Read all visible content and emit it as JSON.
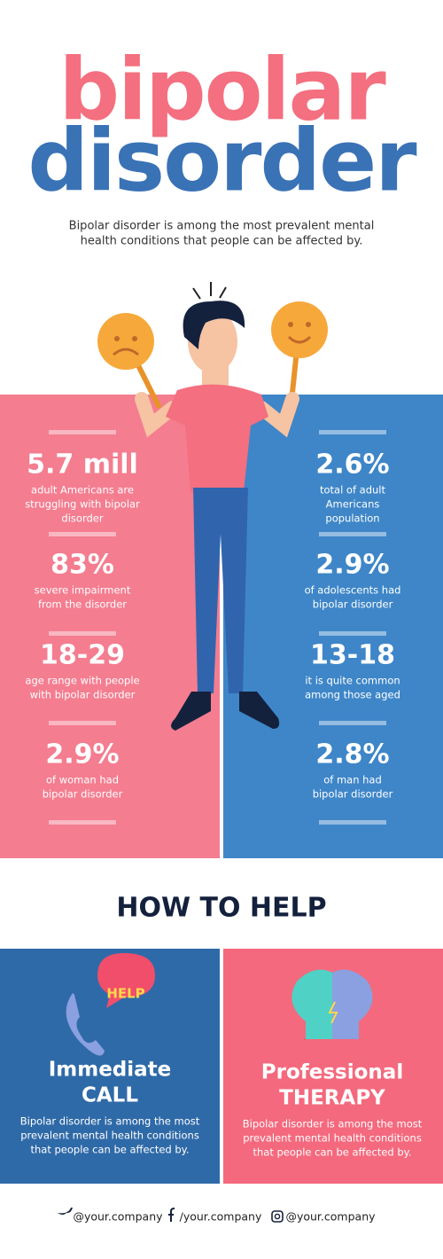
{
  "header": {
    "title_line1": "bipolar",
    "title_line2": "disorder",
    "subtitle": [
      "Bipolar disorder is among the most prevalent mental",
      "health conditions that people can be affected by."
    ]
  },
  "stats": {
    "left": [
      {
        "value": "5.7 mill",
        "lines": [
          "adult Americans are",
          "struggling with bipolar",
          "disorder"
        ]
      },
      {
        "value": "83%",
        "lines": [
          "severe impairment",
          "from the disorder"
        ]
      },
      {
        "value": "18-29",
        "lines": [
          "age range with people",
          "with bipolar disorder"
        ]
      },
      {
        "value": "2.9%",
        "lines": [
          "of woman had",
          "bipolar disorder"
        ]
      }
    ],
    "right": [
      {
        "value": "2.6%",
        "lines": [
          "total of adult",
          "Americans",
          "population"
        ]
      },
      {
        "value": "2.9%",
        "lines": [
          "of adolescents had",
          "bipolar disorder"
        ]
      },
      {
        "value": "13-18",
        "lines": [
          "it is quite common",
          "among those aged"
        ]
      },
      {
        "value": "2.8%",
        "lines": [
          "of man had",
          "bipolar disorder"
        ]
      }
    ]
  },
  "help": {
    "title": "HOW TO HELP",
    "cards": [
      {
        "badge": "HELP",
        "title": [
          "Immediate",
          "CALL"
        ],
        "lines": [
          "Bipolar disorder is among the most",
          "prevalent mental health conditions",
          "that people can be affected by."
        ]
      },
      {
        "title": [
          "Professional",
          "THERAPY"
        ],
        "lines": [
          "Bipolar disorder is among the most",
          "prevalent mental health conditions",
          "that people can be affected by."
        ]
      }
    ]
  },
  "footer": {
    "items": [
      "@your.company",
      "/your.company",
      "@your.company"
    ]
  }
}
